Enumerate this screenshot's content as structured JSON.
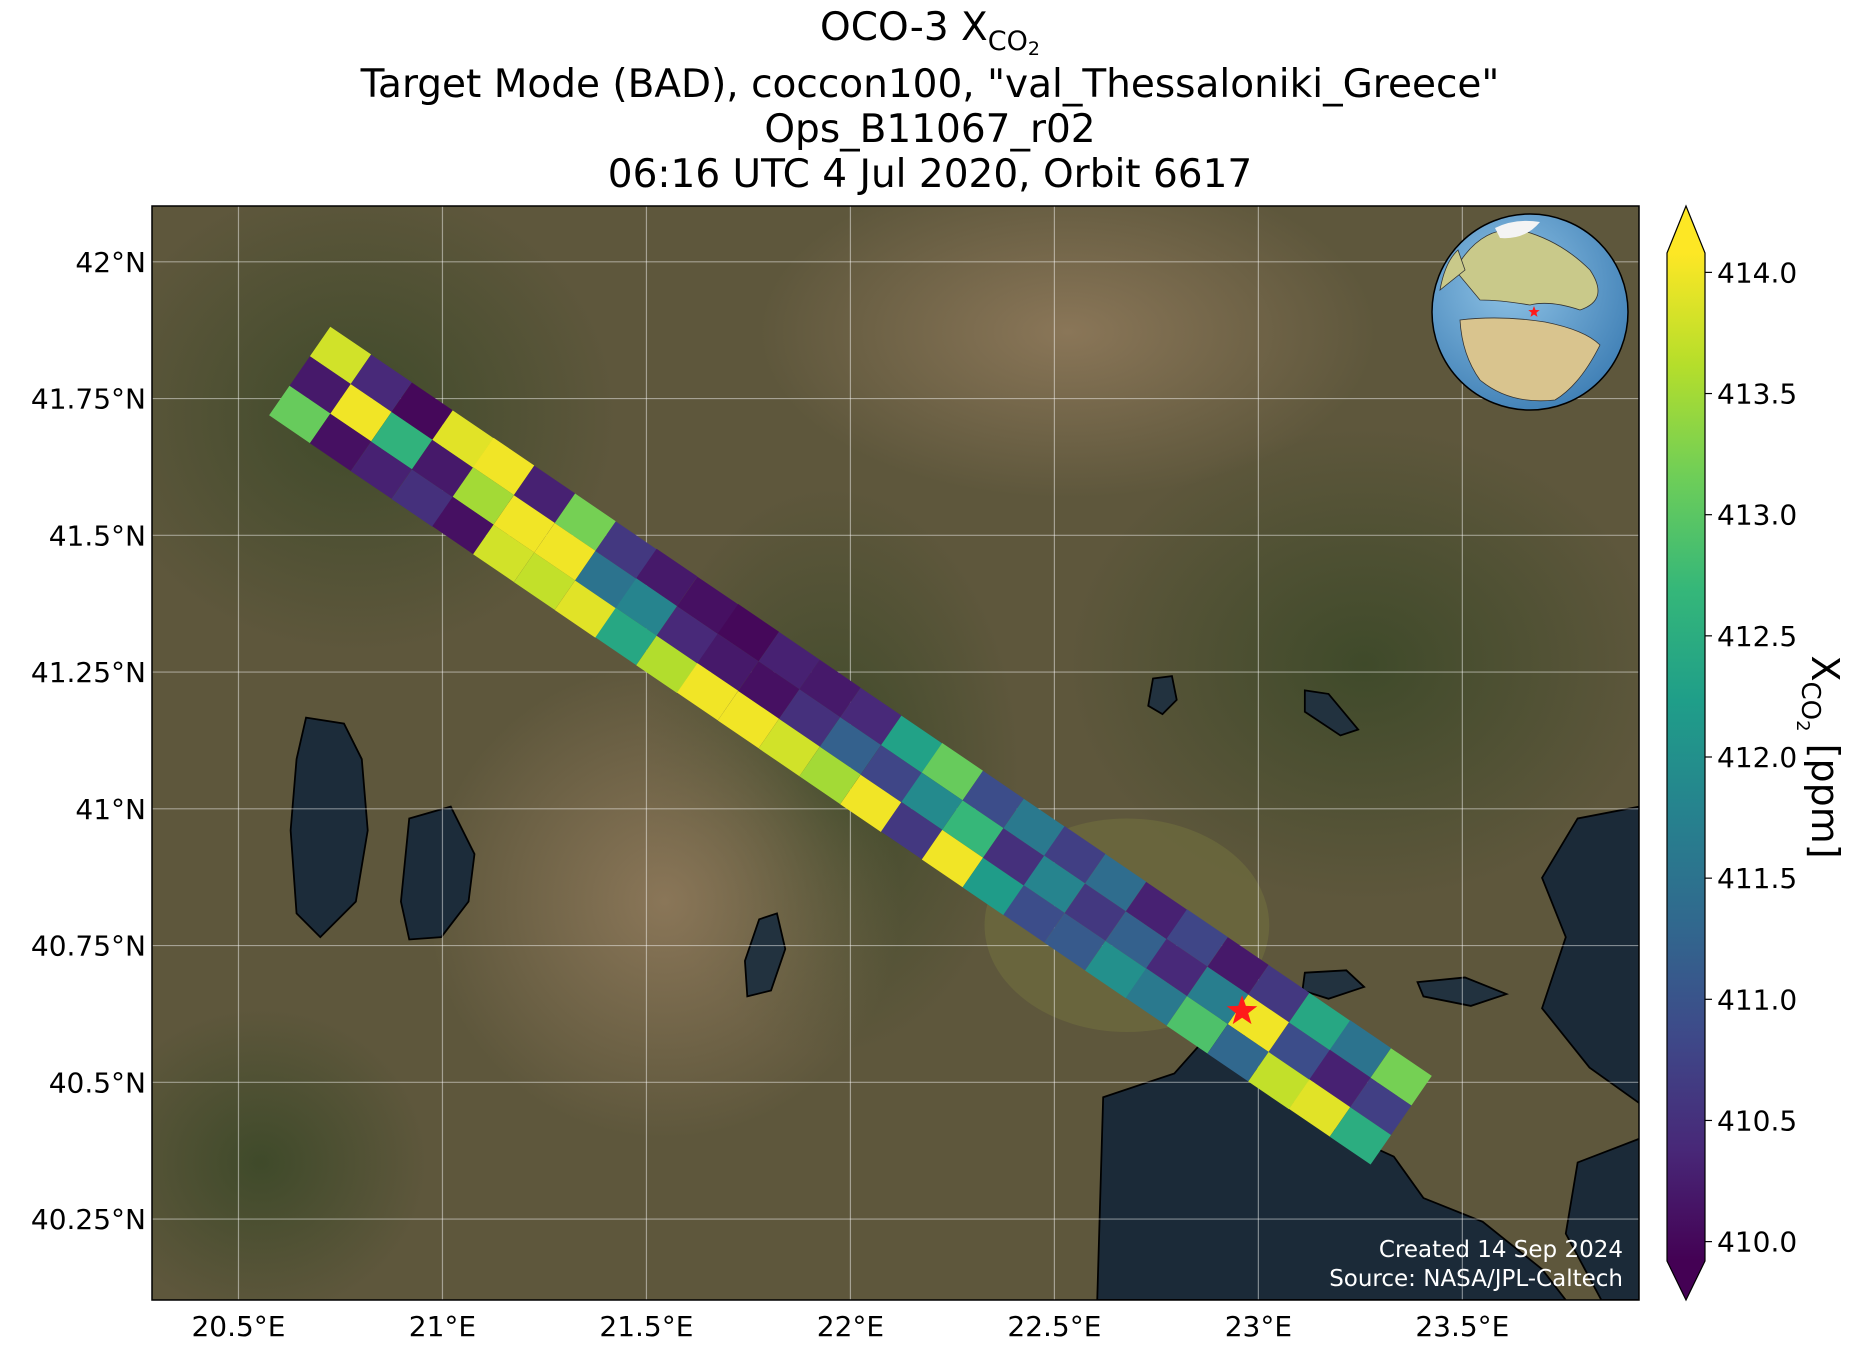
{
  "chart_data": {
    "type": "swath-map",
    "title": {
      "lines": [
        {
          "text": "OCO-3 X",
          "sub": "CO",
          "subsub": "2"
        },
        {
          "text": "Target Mode (BAD), coccon100, \"val_Thessaloniki_Greece\""
        },
        {
          "text": "Ops_B11067_r02"
        },
        {
          "text": "06:16 UTC 4 Jul 2020, Orbit 6617"
        }
      ]
    },
    "xlim": [
      20.288,
      23.933
    ],
    "ylim": [
      40.102,
      42.102
    ],
    "xticks": [
      {
        "value": 20.5,
        "label": "20.5°E"
      },
      {
        "value": 21,
        "label": "21°E"
      },
      {
        "value": 21.5,
        "label": "21.5°E"
      },
      {
        "value": 22,
        "label": "22°E"
      },
      {
        "value": 22.5,
        "label": "22.5°E"
      },
      {
        "value": 23,
        "label": "23°E"
      },
      {
        "value": 23.5,
        "label": "23.5°E"
      }
    ],
    "yticks": [
      {
        "value": 40.25,
        "label": "40.25°N"
      },
      {
        "value": 40.5,
        "label": "40.5°N"
      },
      {
        "value": 40.75,
        "label": "40.75°N"
      },
      {
        "value": 41,
        "label": "41°N"
      },
      {
        "value": 41.25,
        "label": "41.25°N"
      },
      {
        "value": 41.5,
        "label": "41.5°N"
      },
      {
        "value": 41.75,
        "label": "41.75°N"
      },
      {
        "value": 42,
        "label": "42°N"
      }
    ],
    "grid": true,
    "colormap": "viridis",
    "clim": [
      409.92,
      414.08
    ],
    "cticks": [
      {
        "value": 410,
        "label": "410.0"
      },
      410.5,
      {
        "value": 411,
        "label": "411.0"
      },
      411.5,
      {
        "value": 412,
        "label": "412.0"
      },
      412.5,
      {
        "value": 413,
        "label": "413.0"
      },
      413.5,
      {
        "value": 414,
        "label": "414.0"
      }
    ],
    "colorbar_label": {
      "text": "X",
      "sub": "CO",
      "subsub": "2",
      "unit": " [ppm]"
    },
    "target": {
      "lon": 22.96,
      "lat": 40.63,
      "color": "#ff1a1a"
    },
    "footer": [
      "Created 14 Sep 2024",
      "Source: NASA/JPL-Caltech"
    ],
    "soundings": {
      "lon": [
        20.75,
        20.7,
        20.65,
        20.85,
        20.8,
        20.75,
        20.95,
        20.9,
        20.85,
        21.05,
        21.0,
        20.95,
        21.15,
        21.1,
        21.05,
        21.25,
        21.2,
        21.15,
        21.35,
        21.3,
        21.25,
        21.45,
        21.4,
        21.35,
        21.55,
        21.5,
        21.45,
        21.65,
        21.6,
        21.55,
        21.75,
        21.7,
        21.65,
        21.85,
        21.8,
        21.75,
        21.95,
        21.9,
        21.85,
        22.05,
        22.0,
        21.95,
        22.15,
        22.1,
        22.05,
        22.25,
        22.2,
        22.15,
        22.35,
        22.3,
        22.25,
        22.45,
        22.4,
        22.35,
        22.55,
        22.5,
        22.45,
        22.65,
        22.6,
        22.55,
        22.75,
        22.7,
        22.65,
        22.85,
        22.8,
        22.75,
        22.95,
        22.9,
        22.85,
        23.05,
        23.0,
        22.95,
        23.15,
        23.1,
        23.05,
        23.25,
        23.2,
        23.15,
        23.35,
        23.3,
        23.25
      ],
      "lat": [
        41.829,
        41.775,
        41.721,
        41.778,
        41.724,
        41.67,
        41.727,
        41.673,
        41.619,
        41.676,
        41.622,
        41.568,
        41.626,
        41.572,
        41.518,
        41.575,
        41.521,
        41.467,
        41.524,
        41.47,
        41.416,
        41.473,
        41.419,
        41.365,
        41.423,
        41.369,
        41.315,
        41.372,
        41.318,
        41.264,
        41.322,
        41.268,
        41.214,
        41.271,
        41.217,
        41.163,
        41.22,
        41.166,
        41.112,
        41.169,
        41.115,
        41.061,
        41.118,
        41.064,
        41.01,
        41.068,
        41.014,
        40.96,
        41.017,
        40.963,
        40.909,
        40.966,
        40.912,
        40.858,
        40.916,
        40.862,
        40.808,
        40.865,
        40.811,
        40.757,
        40.814,
        40.76,
        40.706,
        40.764,
        40.71,
        40.656,
        40.713,
        40.659,
        40.605,
        40.662,
        40.608,
        40.554,
        40.611,
        40.557,
        40.503,
        40.561,
        40.507,
        40.453,
        40.51,
        40.456,
        40.402
      ],
      "xco2": [
        413.8,
        410.2,
        413.1,
        410.4,
        414.0,
        410.1,
        410.0,
        412.6,
        410.3,
        413.9,
        410.2,
        410.5,
        414.0,
        413.5,
        410.1,
        410.3,
        414.0,
        413.8,
        413.2,
        414.0,
        413.7,
        410.6,
        411.5,
        413.9,
        410.2,
        411.8,
        412.4,
        410.1,
        410.4,
        413.6,
        410.0,
        410.2,
        414.0,
        410.3,
        410.1,
        414.0,
        410.2,
        410.5,
        413.8,
        410.4,
        411.2,
        413.5,
        412.3,
        410.8,
        414.0,
        413.1,
        411.9,
        410.6,
        410.9,
        412.7,
        414.0,
        411.6,
        410.5,
        412.2,
        410.7,
        411.8,
        410.9,
        411.4,
        410.6,
        411.1,
        410.3,
        411.2,
        412.0,
        410.8,
        410.4,
        411.6,
        410.2,
        411.7,
        412.9,
        410.6,
        414.0,
        411.3,
        412.4,
        410.9,
        413.7,
        411.5,
        410.3,
        413.9,
        413.2,
        410.7,
        412.5
      ]
    }
  }
}
